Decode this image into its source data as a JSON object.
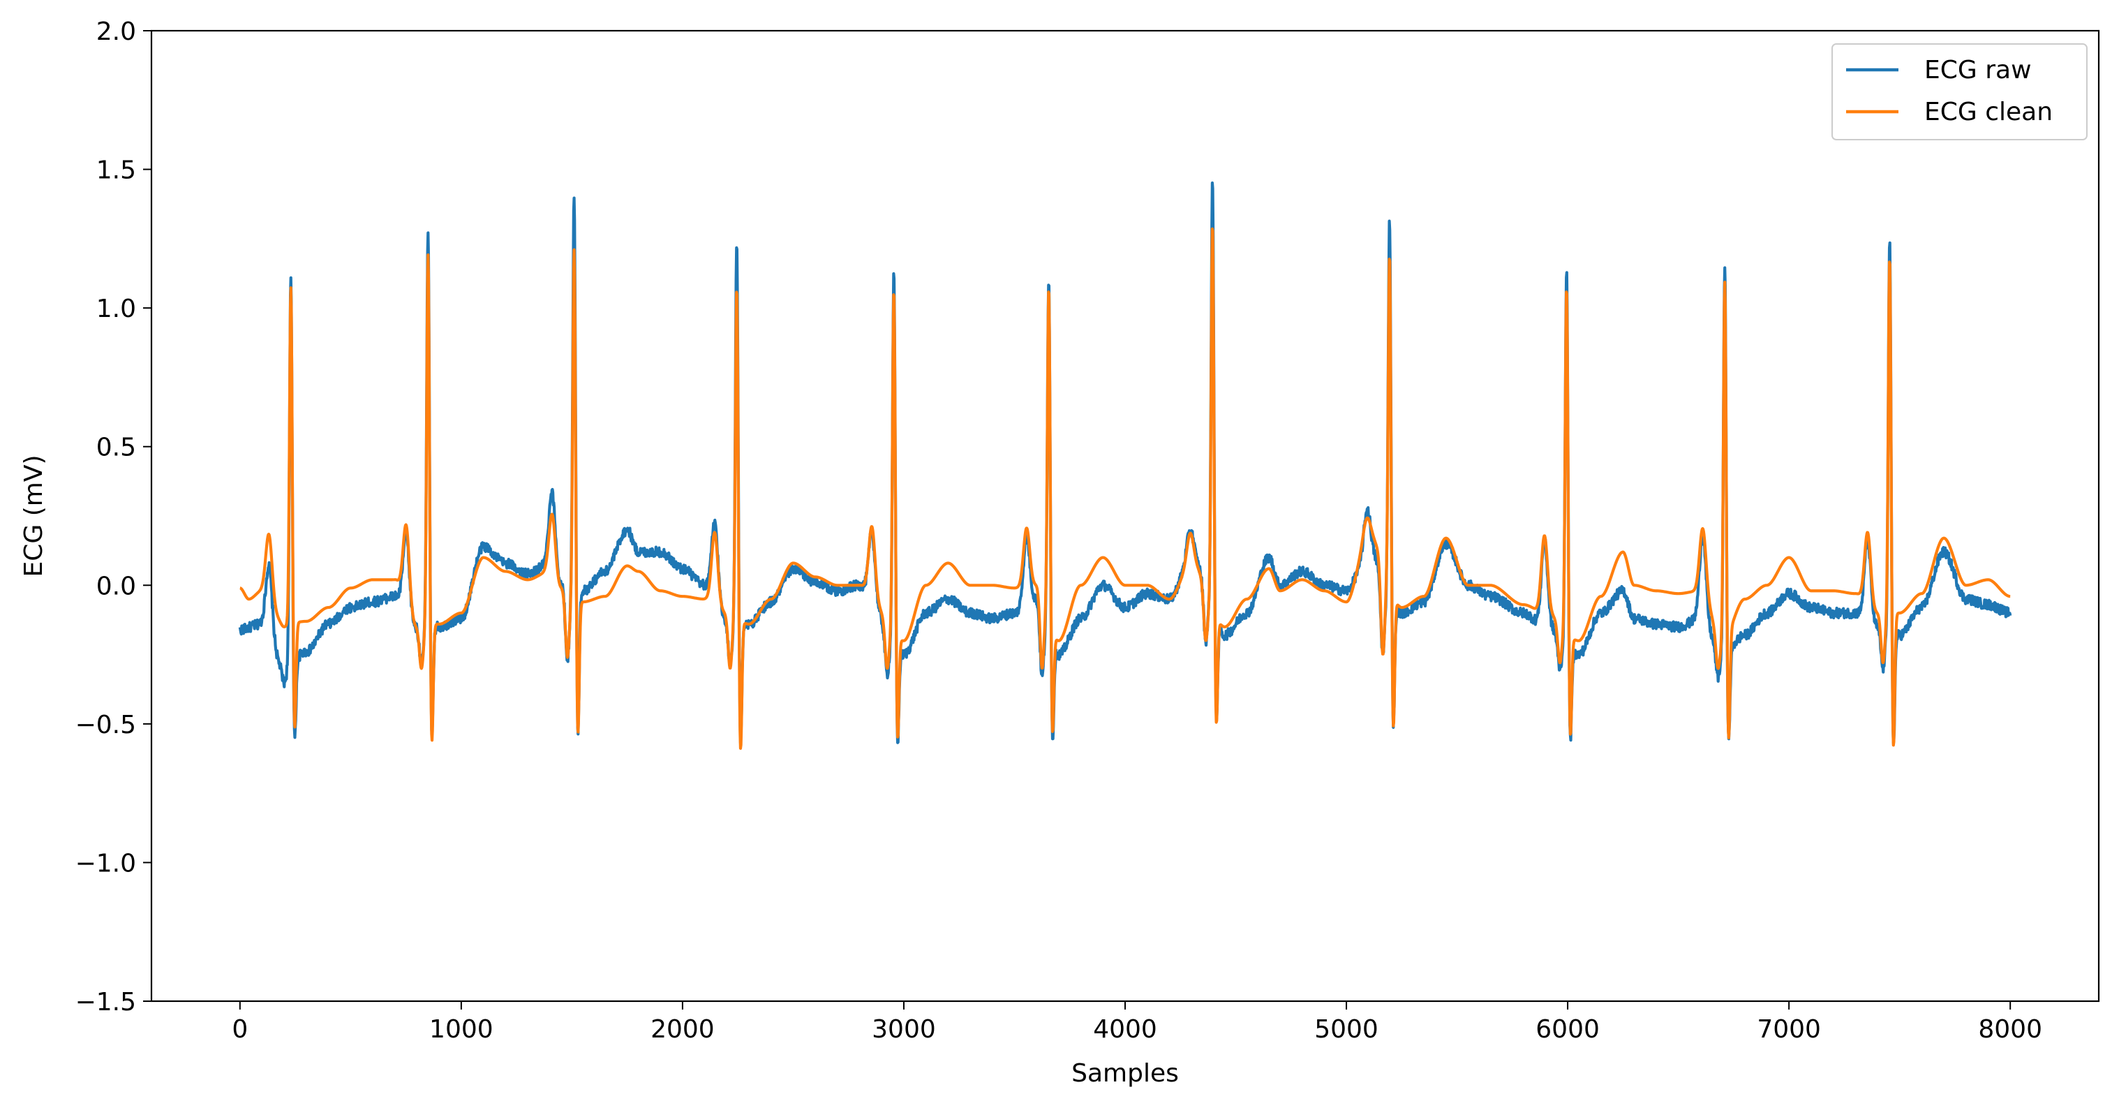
{
  "chart_data": {
    "type": "line",
    "title": "",
    "xlabel": "Samples",
    "ylabel": "ECG (mV)",
    "xlim": [
      -400,
      8400
    ],
    "ylim": [
      -1.5,
      2.0
    ],
    "xticks": [
      0,
      1000,
      2000,
      3000,
      4000,
      5000,
      6000,
      7000,
      8000
    ],
    "xtick_labels": [
      "0",
      "1000",
      "2000",
      "3000",
      "4000",
      "5000",
      "6000",
      "7000",
      "8000"
    ],
    "yticks": [
      -1.5,
      -1.0,
      -0.5,
      0.0,
      0.5,
      1.0,
      1.5,
      2.0
    ],
    "ytick_labels": [
      "−1.5",
      "−1.0",
      "−0.5",
      "0.0",
      "0.5",
      "1.0",
      "1.5",
      "2.0"
    ],
    "grid": false,
    "legend_position": "top-right",
    "series": [
      {
        "name": "ECG raw",
        "color": "#1f77b4",
        "baseline": [
          [
            0,
            -0.16
          ],
          [
            100,
            -0.14
          ],
          [
            200,
            -0.3
          ],
          [
            300,
            -0.24
          ],
          [
            400,
            -0.14
          ],
          [
            500,
            -0.08
          ],
          [
            600,
            -0.06
          ],
          [
            700,
            -0.04
          ],
          [
            800,
            -0.15
          ],
          [
            900,
            -0.15
          ],
          [
            1000,
            -0.12
          ],
          [
            1100,
            0.14
          ],
          [
            1200,
            0.08
          ],
          [
            1300,
            0.04
          ],
          [
            1400,
            0.08
          ],
          [
            1450,
            0.0
          ],
          [
            1550,
            -0.02
          ],
          [
            1650,
            0.05
          ],
          [
            1750,
            0.2
          ],
          [
            1800,
            0.12
          ],
          [
            1900,
            0.12
          ],
          [
            2000,
            0.06
          ],
          [
            2100,
            0.0
          ],
          [
            2200,
            -0.12
          ],
          [
            2300,
            -0.14
          ],
          [
            2400,
            -0.06
          ],
          [
            2500,
            0.06
          ],
          [
            2600,
            0.01
          ],
          [
            2700,
            -0.02
          ],
          [
            2800,
            0.0
          ],
          [
            3000,
            -0.25
          ],
          [
            3100,
            -0.1
          ],
          [
            3200,
            -0.05
          ],
          [
            3300,
            -0.1
          ],
          [
            3400,
            -0.12
          ],
          [
            3500,
            -0.1
          ],
          [
            3600,
            -0.05
          ],
          [
            3700,
            -0.25
          ],
          [
            3800,
            -0.12
          ],
          [
            3900,
            0.0
          ],
          [
            4000,
            -0.08
          ],
          [
            4100,
            -0.03
          ],
          [
            4200,
            -0.05
          ],
          [
            4300,
            0.1
          ],
          [
            4450,
            -0.18
          ],
          [
            4550,
            -0.1
          ],
          [
            4650,
            0.1
          ],
          [
            4700,
            0.0
          ],
          [
            4800,
            0.05
          ],
          [
            4900,
            0.0
          ],
          [
            5000,
            -0.02
          ],
          [
            5100,
            0.12
          ],
          [
            5250,
            -0.1
          ],
          [
            5350,
            -0.06
          ],
          [
            5450,
            0.15
          ],
          [
            5550,
            0.0
          ],
          [
            5650,
            -0.04
          ],
          [
            5800,
            -0.1
          ],
          [
            5900,
            -0.15
          ],
          [
            6050,
            -0.25
          ],
          [
            6150,
            -0.1
          ],
          [
            6250,
            -0.02
          ],
          [
            6300,
            -0.12
          ],
          [
            6400,
            -0.14
          ],
          [
            6500,
            -0.15
          ],
          [
            6600,
            -0.12
          ],
          [
            6700,
            -0.25
          ],
          [
            6800,
            -0.18
          ],
          [
            6900,
            -0.1
          ],
          [
            7000,
            -0.03
          ],
          [
            7100,
            -0.08
          ],
          [
            7200,
            -0.1
          ],
          [
            7300,
            -0.1
          ],
          [
            7400,
            -0.15
          ],
          [
            7500,
            -0.18
          ],
          [
            7600,
            -0.08
          ],
          [
            7700,
            0.12
          ],
          [
            7800,
            -0.05
          ],
          [
            7900,
            -0.07
          ],
          [
            8000,
            -0.1
          ]
        ],
        "beats": [
          {
            "x": 230,
            "r": 1.11,
            "s": -0.57,
            "p": 0.1,
            "q": -0.35,
            "t": null
          },
          {
            "x": 850,
            "r": 1.29,
            "s": -0.57,
            "p": 0.22,
            "q": -0.28,
            "t": null
          },
          {
            "x": 1510,
            "r": 1.42,
            "s": -0.55,
            "p": 0.36,
            "q": -0.27,
            "t": null
          },
          {
            "x": 2245,
            "r": 1.25,
            "s": -0.58,
            "p": 0.26,
            "q": -0.28,
            "t": null
          },
          {
            "x": 2955,
            "r": 1.13,
            "s": -0.58,
            "p": 0.22,
            "q": -0.32,
            "t": null
          },
          {
            "x": 3655,
            "r": 1.12,
            "s": -0.57,
            "p": 0.21,
            "q": -0.33,
            "t": null
          },
          {
            "x": 4395,
            "r": 1.48,
            "s": -0.5,
            "p": 0.21,
            "q": -0.2,
            "t": null
          },
          {
            "x": 5195,
            "r": 1.33,
            "s": -0.52,
            "p": 0.29,
            "q": -0.25,
            "t": null
          },
          {
            "x": 5995,
            "r": 1.15,
            "s": -0.57,
            "p": 0.2,
            "q": -0.3,
            "t": null
          },
          {
            "x": 6710,
            "r": 1.16,
            "s": -0.58,
            "p": 0.22,
            "q": -0.33,
            "t": null
          },
          {
            "x": 7455,
            "r": 1.25,
            "s": -0.59,
            "p": 0.2,
            "q": -0.3,
            "t": null
          }
        ],
        "noise": 0.018
      },
      {
        "name": "ECG clean",
        "color": "#ff7f0e",
        "baseline": [
          [
            0,
            -0.01
          ],
          [
            40,
            -0.05
          ],
          [
            100,
            -0.02
          ],
          [
            200,
            -0.14
          ],
          [
            300,
            -0.13
          ],
          [
            400,
            -0.08
          ],
          [
            500,
            -0.01
          ],
          [
            600,
            0.02
          ],
          [
            700,
            0.02
          ],
          [
            800,
            -0.15
          ],
          [
            900,
            -0.14
          ],
          [
            1000,
            -0.1
          ],
          [
            1100,
            0.1
          ],
          [
            1200,
            0.05
          ],
          [
            1300,
            0.02
          ],
          [
            1400,
            0.05
          ],
          [
            1450,
            -0.01
          ],
          [
            1550,
            -0.06
          ],
          [
            1650,
            -0.04
          ],
          [
            1750,
            0.07
          ],
          [
            1800,
            0.05
          ],
          [
            1900,
            -0.02
          ],
          [
            2000,
            -0.04
          ],
          [
            2100,
            -0.05
          ],
          [
            2200,
            -0.1
          ],
          [
            2300,
            -0.14
          ],
          [
            2400,
            -0.05
          ],
          [
            2500,
            0.08
          ],
          [
            2600,
            0.03
          ],
          [
            2700,
            0.0
          ],
          [
            2800,
            0.0
          ],
          [
            3000,
            -0.2
          ],
          [
            3100,
            0.0
          ],
          [
            3200,
            0.08
          ],
          [
            3300,
            0.0
          ],
          [
            3400,
            0.0
          ],
          [
            3500,
            -0.01
          ],
          [
            3600,
            0.0
          ],
          [
            3700,
            -0.2
          ],
          [
            3800,
            0.0
          ],
          [
            3900,
            0.1
          ],
          [
            4000,
            0.0
          ],
          [
            4100,
            0.0
          ],
          [
            4200,
            -0.05
          ],
          [
            4300,
            0.08
          ],
          [
            4450,
            -0.15
          ],
          [
            4550,
            -0.05
          ],
          [
            4650,
            0.06
          ],
          [
            4700,
            -0.02
          ],
          [
            4800,
            0.02
          ],
          [
            4900,
            -0.02
          ],
          [
            5000,
            -0.06
          ],
          [
            5100,
            0.18
          ],
          [
            5250,
            -0.08
          ],
          [
            5350,
            -0.04
          ],
          [
            5450,
            0.17
          ],
          [
            5550,
            0.0
          ],
          [
            5650,
            0.0
          ],
          [
            5800,
            -0.07
          ],
          [
            5900,
            -0.1
          ],
          [
            6050,
            -0.2
          ],
          [
            6150,
            -0.04
          ],
          [
            6250,
            0.12
          ],
          [
            6300,
            0.0
          ],
          [
            6400,
            -0.02
          ],
          [
            6500,
            -0.03
          ],
          [
            6600,
            -0.02
          ],
          [
            6700,
            -0.2
          ],
          [
            6800,
            -0.05
          ],
          [
            6900,
            0.0
          ],
          [
            7000,
            0.1
          ],
          [
            7100,
            -0.02
          ],
          [
            7200,
            -0.02
          ],
          [
            7300,
            -0.03
          ],
          [
            7400,
            -0.1
          ],
          [
            7500,
            -0.1
          ],
          [
            7600,
            -0.03
          ],
          [
            7700,
            0.17
          ],
          [
            7800,
            0.0
          ],
          [
            7900,
            0.02
          ],
          [
            8000,
            -0.04
          ]
        ],
        "beats": [
          {
            "x": 230,
            "r": 1.08,
            "s": -0.53,
            "p": 0.21,
            "q": -0.15,
            "t": null
          },
          {
            "x": 850,
            "r": 1.2,
            "s": -0.58,
            "p": 0.25,
            "q": -0.3,
            "t": null
          },
          {
            "x": 1510,
            "r": 1.22,
            "s": -0.55,
            "p": 0.28,
            "q": -0.26,
            "t": null
          },
          {
            "x": 2245,
            "r": 1.08,
            "s": -0.61,
            "p": 0.22,
            "q": -0.3,
            "t": null
          },
          {
            "x": 2955,
            "r": 1.07,
            "s": -0.57,
            "p": 0.24,
            "q": -0.3,
            "t": null
          },
          {
            "x": 3655,
            "r": 1.08,
            "s": -0.55,
            "p": 0.23,
            "q": -0.3,
            "t": null
          },
          {
            "x": 4395,
            "r": 1.31,
            "s": -0.52,
            "p": 0.2,
            "q": -0.2,
            "t": null
          },
          {
            "x": 5195,
            "r": 1.2,
            "s": -0.53,
            "p": 0.25,
            "q": -0.25,
            "t": null
          },
          {
            "x": 5995,
            "r": 1.08,
            "s": -0.56,
            "p": 0.21,
            "q": -0.28,
            "t": null
          },
          {
            "x": 6710,
            "r": 1.1,
            "s": -0.57,
            "p": 0.23,
            "q": -0.3,
            "t": null
          },
          {
            "x": 7455,
            "r": 1.19,
            "s": -0.6,
            "p": 0.22,
            "q": -0.28,
            "t": null
          }
        ],
        "noise": 0.0
      }
    ]
  }
}
